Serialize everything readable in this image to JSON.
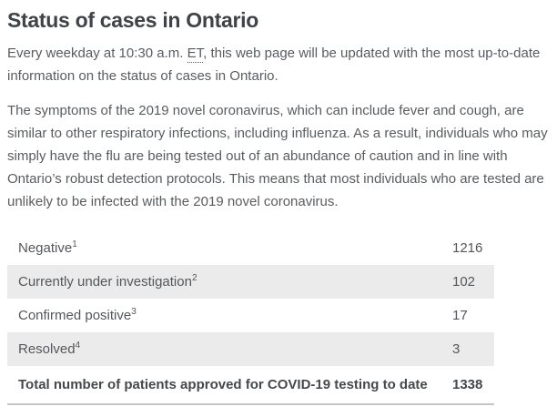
{
  "title": "Status of cases in Ontario",
  "intro": {
    "text_before_abbr": "Every weekday at 10:30 a.m. ",
    "abbr": "ET",
    "text_after_abbr": ", this web page will be updated with the most up-to-date information on the status of cases in Ontario."
  },
  "description": "The symptoms of the 2019 novel coronavirus, which can include fever and cough, are similar to other respiratory infections, including influenza. As a result, individuals who may simply have the flu are being tested out of an abundance of caution and in line with Ontario’s robust detection protocols. This means that most individuals who are tested are unlikely to be infected with the 2019 novel coronavirus.",
  "table": {
    "rows": [
      {
        "label": "Negative",
        "footnote": "1",
        "value": "1216"
      },
      {
        "label": "Currently under investigation",
        "footnote": "2",
        "value": "102"
      },
      {
        "label": "Confirmed positive",
        "footnote": "3",
        "value": "17"
      },
      {
        "label": "Resolved",
        "footnote": "4",
        "value": "3"
      }
    ],
    "total": {
      "label": "Total number of patients approved for COVID-19 testing to date",
      "value": "1338"
    }
  },
  "colors": {
    "heading_text": "#3f4246",
    "body_text": "#595c5f",
    "table_text": "#54575b",
    "shaded_row_bg": "#ebebeb",
    "total_border": "#c5c5c5"
  }
}
